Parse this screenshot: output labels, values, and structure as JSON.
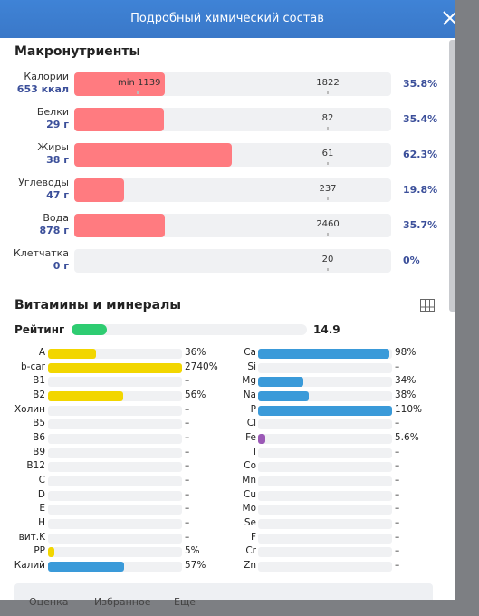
{
  "header": {
    "title": "Подробный химический состав"
  },
  "macronutrients": {
    "title": "Макронутриенты",
    "bar_color": "#ff7b80",
    "rows": [
      {
        "name": "Калории",
        "amount": "653 ккал",
        "min_label": "min 1139",
        "norm": 1822,
        "percent": 35.8,
        "percent_label": "35.8%"
      },
      {
        "name": "Белки",
        "amount": "29 г",
        "norm": 82,
        "percent": 35.4,
        "percent_label": "35.4%"
      },
      {
        "name": "Жиры",
        "amount": "38 г",
        "norm": 61,
        "percent": 62.3,
        "percent_label": "62.3%"
      },
      {
        "name": "Углеводы",
        "amount": "47 г",
        "norm": 237,
        "percent": 19.8,
        "percent_label": "19.8%"
      },
      {
        "name": "Вода",
        "amount": "878 г",
        "norm": 2460,
        "percent": 35.7,
        "percent_label": "35.7%"
      },
      {
        "name": "Клетчатка",
        "amount": "0 г",
        "norm": 20,
        "percent": 0,
        "percent_label": "0%"
      }
    ]
  },
  "vitamins": {
    "title": "Витамины и минералы",
    "rating_label": "Рейтинг",
    "rating": 14.9,
    "rating_color": "#2ecc71",
    "left": [
      {
        "name": "A",
        "value": 36,
        "label": "36%",
        "color": "#f2d600"
      },
      {
        "name": "b-car",
        "value": 2740,
        "label": "2740%",
        "color": "#f2d600"
      },
      {
        "name": "B1",
        "value": null,
        "label": "–"
      },
      {
        "name": "B2",
        "value": 56,
        "label": "56%",
        "color": "#f2d600"
      },
      {
        "name": "Холин",
        "value": null,
        "label": "–"
      },
      {
        "name": "B5",
        "value": null,
        "label": "–"
      },
      {
        "name": "B6",
        "value": null,
        "label": "–"
      },
      {
        "name": "B9",
        "value": null,
        "label": "–"
      },
      {
        "name": "B12",
        "value": null,
        "label": "–"
      },
      {
        "name": "C",
        "value": null,
        "label": "–"
      },
      {
        "name": "D",
        "value": null,
        "label": "–"
      },
      {
        "name": "E",
        "value": null,
        "label": "–"
      },
      {
        "name": "H",
        "value": null,
        "label": "–"
      },
      {
        "name": "вит.K",
        "value": null,
        "label": "–"
      },
      {
        "name": "PP",
        "value": 5,
        "label": "5%",
        "color": "#f2d600"
      },
      {
        "name": "Калий",
        "value": 57,
        "label": "57%",
        "color": "#3a9ad9"
      }
    ],
    "right": [
      {
        "name": "Ca",
        "value": 98,
        "label": "98%",
        "color": "#3a9ad9"
      },
      {
        "name": "Si",
        "value": null,
        "label": "–"
      },
      {
        "name": "Mg",
        "value": 34,
        "label": "34%",
        "color": "#3a9ad9"
      },
      {
        "name": "Na",
        "value": 38,
        "label": "38%",
        "color": "#3a9ad9"
      },
      {
        "name": "P",
        "value": 110,
        "label": "110%",
        "color": "#3a9ad9"
      },
      {
        "name": "Cl",
        "value": null,
        "label": "–"
      },
      {
        "name": "Fe",
        "value": 5.6,
        "label": "5.6%",
        "color": "#9b59b6"
      },
      {
        "name": "I",
        "value": null,
        "label": "–"
      },
      {
        "name": "Co",
        "value": null,
        "label": "–"
      },
      {
        "name": "Mn",
        "value": null,
        "label": "–"
      },
      {
        "name": "Cu",
        "value": null,
        "label": "–"
      },
      {
        "name": "Mo",
        "value": null,
        "label": "–"
      },
      {
        "name": "Se",
        "value": null,
        "label": "–"
      },
      {
        "name": "F",
        "value": null,
        "label": "–"
      },
      {
        "name": "Cr",
        "value": null,
        "label": "–"
      },
      {
        "name": "Zn",
        "value": null,
        "label": "–"
      }
    ]
  },
  "footer": {
    "buttons": [
      "Оценка",
      "Избранное",
      "Еще"
    ]
  }
}
